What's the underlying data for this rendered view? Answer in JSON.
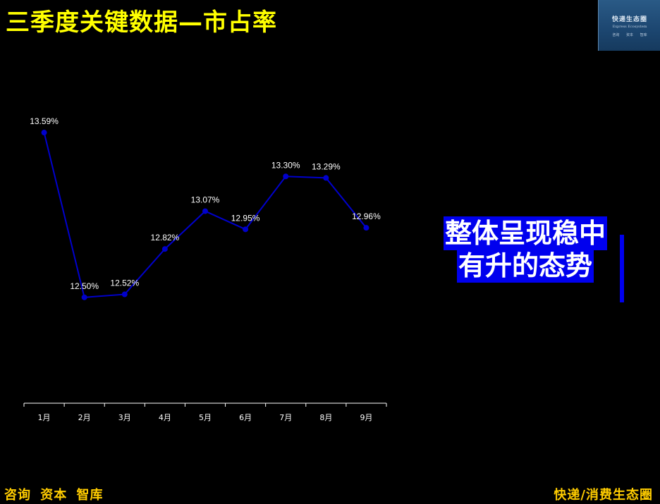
{
  "title": "三季度关键数据—市占率",
  "logo": {
    "main": "快递生态圈",
    "sub": "Express Ecosystem",
    "links": [
      "咨询",
      "资本",
      "智库"
    ]
  },
  "callout": {
    "line1": "整体呈现稳中",
    "line2": "有升的态势"
  },
  "footer": {
    "left": "咨询 资本 智库",
    "right": "快递/消费生态圈"
  },
  "chart_data": {
    "type": "line",
    "categories": [
      "1月",
      "2月",
      "3月",
      "4月",
      "5月",
      "6月",
      "7月",
      "8月",
      "9月"
    ],
    "values": [
      13.59,
      12.5,
      12.52,
      12.82,
      13.07,
      12.95,
      13.3,
      13.29,
      12.96
    ],
    "data_labels": [
      "13.59%",
      "12.50%",
      "12.52%",
      "12.82%",
      "13.07%",
      "12.95%",
      "13.30%",
      "13.29%",
      "12.96%"
    ],
    "ylim": [
      11.8,
      13.8
    ],
    "grid": false,
    "series_color": "#0000cc"
  }
}
